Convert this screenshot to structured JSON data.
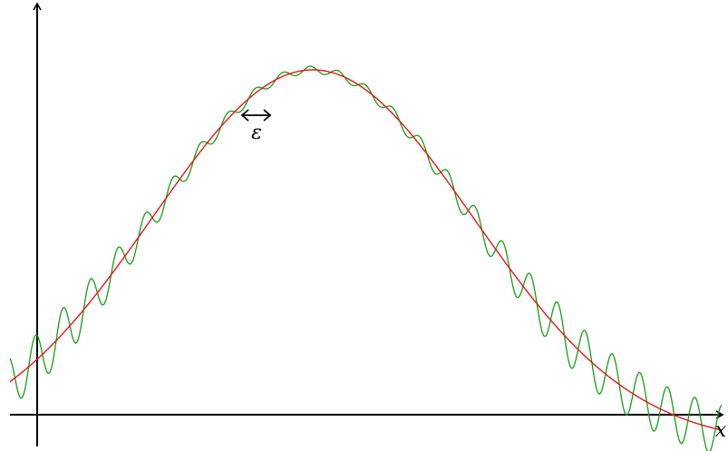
{
  "labels": {
    "x_axis": "x",
    "epsilon": "ε"
  },
  "colors": {
    "smooth_curve": "#e8141a",
    "oscillating_curve": "#12a012",
    "axes": "#000000"
  },
  "icons": {
    "epsilon_marker": "double-headed-arrow-icon"
  }
}
